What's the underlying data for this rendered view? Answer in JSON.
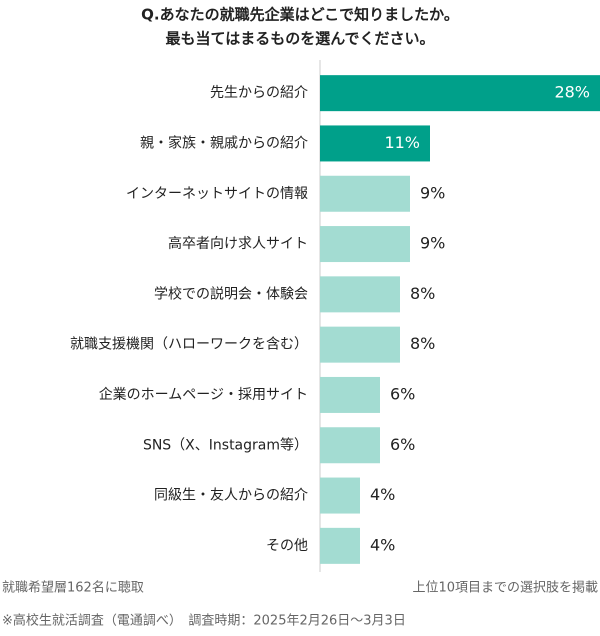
{
  "chart_data": {
    "type": "hbar",
    "title": [
      "Q.あなたの就職先企業はどこで知りましたか。",
      "最も当てはまるものを選んでください。"
    ],
    "categories": [
      "先生からの紹介",
      "親・家族・親戚からの紹介",
      "インターネットサイトの情報",
      "高卒者向け求人サイト",
      "学校での説明会・体験会",
      "就職支援機関（ハローワークを含む）",
      "企業のホームページ・採用サイト",
      "SNS（X、Instagram等）",
      "同級生・友人からの紹介",
      "その他"
    ],
    "values": [
      28,
      11,
      9,
      9,
      8,
      8,
      6,
      6,
      4,
      4
    ],
    "value_labels": [
      "28%",
      "11%",
      "9%",
      "9%",
      "8%",
      "8%",
      "6%",
      "6%",
      "4%",
      "4%"
    ],
    "colors": [
      "#00a08a",
      "#00a08a",
      "#a3dcd2",
      "#a3dcd2",
      "#a3dcd2",
      "#a3dcd2",
      "#a3dcd2",
      "#a3dcd2",
      "#a3dcd2",
      "#a3dcd2"
    ],
    "annotations": [
      "就職希望層162名に聴取",
      "上位10項目までの選択肢を掲載",
      "※高校生就活調査（電通調べ）　調査時期：2025年2月26日～3月3日"
    ]
  }
}
